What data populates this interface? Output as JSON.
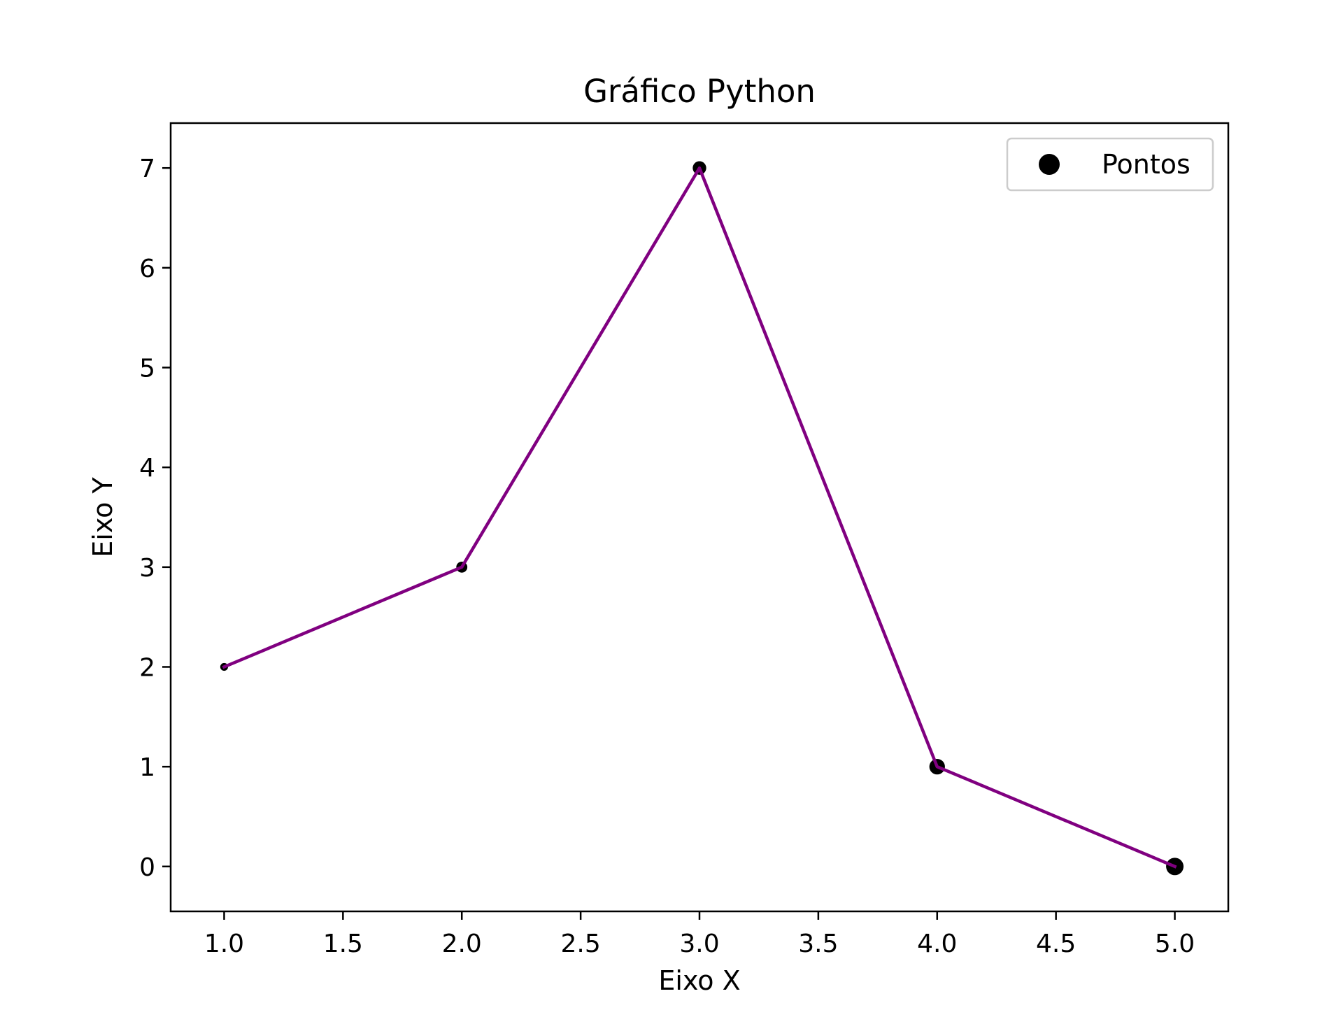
{
  "chart_data": {
    "type": "line",
    "title": "Gráfico Python",
    "xlabel": "Eixo X",
    "ylabel": "Eixo Y",
    "xlim": [
      0.775,
      5.225
    ],
    "ylim": [
      -0.45,
      7.45
    ],
    "x_ticks": [
      1.0,
      1.5,
      2.0,
      2.5,
      3.0,
      3.5,
      4.0,
      4.5,
      5.0
    ],
    "x_tick_labels": [
      "1.0",
      "1.5",
      "2.0",
      "2.5",
      "3.0",
      "3.5",
      "4.0",
      "4.5",
      "5.0"
    ],
    "y_ticks": [
      0,
      1,
      2,
      3,
      4,
      5,
      6,
      7
    ],
    "y_tick_labels": [
      "0",
      "1",
      "2",
      "3",
      "4",
      "5",
      "6",
      "7"
    ],
    "grid": false,
    "legend_position": "top-right",
    "series": [
      {
        "kind": "line",
        "x": [
          1,
          2,
          3,
          4,
          5
        ],
        "y": [
          2,
          3,
          7,
          1,
          0
        ],
        "color": "#800080"
      },
      {
        "kind": "scatter",
        "name": "Pontos",
        "x": [
          1,
          2,
          3,
          4,
          5
        ],
        "y": [
          2,
          3,
          7,
          1,
          0
        ],
        "marker_sizes": [
          10,
          20,
          30,
          40,
          50
        ],
        "color": "#000000"
      }
    ]
  }
}
